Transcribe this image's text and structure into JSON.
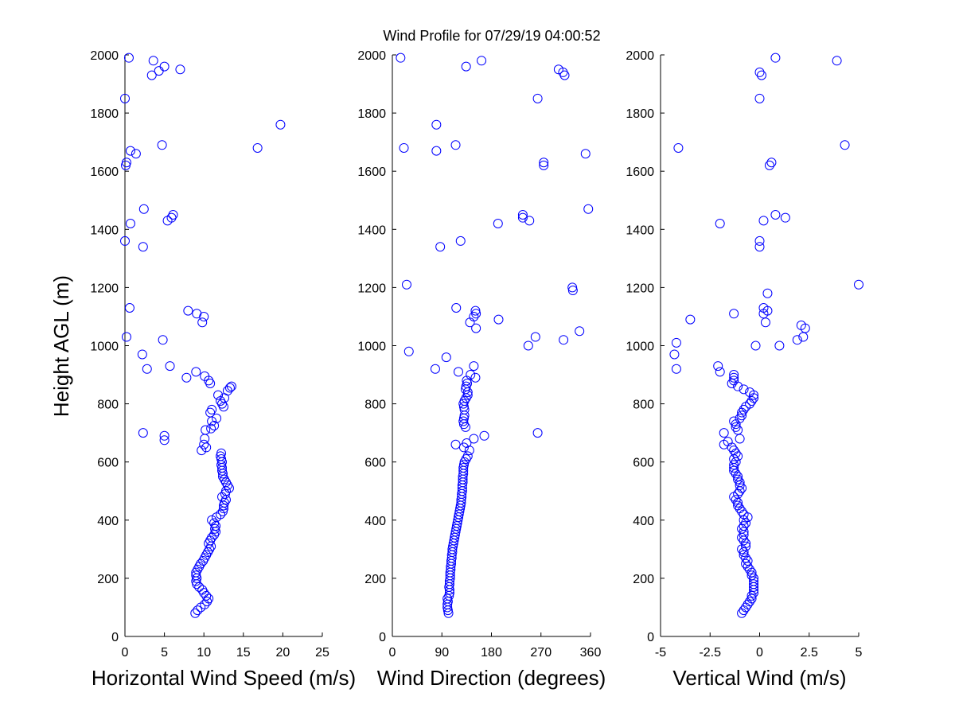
{
  "title": "Wind Profile for  07/29/19 04:00:52",
  "colors": {
    "marker": "#0000ff",
    "axis": "#000000",
    "background": "#ffffff"
  },
  "chart_data": [
    {
      "type": "scatter",
      "xlabel": "Horizontal Wind Speed (m/s)",
      "ylabel": "Height AGL (m)",
      "xlim": [
        0,
        25
      ],
      "ylim": [
        0,
        2000
      ],
      "xticks": [
        "0",
        "5",
        "10",
        "15",
        "20",
        "25"
      ],
      "yticks": [
        "0",
        "200",
        "400",
        "600",
        "800",
        "1000",
        "1200",
        "1400",
        "1600",
        "1800",
        "2000"
      ],
      "grid": false,
      "points": [
        [
          8.9,
          80
        ],
        [
          9.2,
          90
        ],
        [
          9.6,
          100
        ],
        [
          10.1,
          110
        ],
        [
          10.4,
          120
        ],
        [
          10.6,
          130
        ],
        [
          10.3,
          140
        ],
        [
          10.0,
          150
        ],
        [
          9.8,
          160
        ],
        [
          9.4,
          170
        ],
        [
          9.1,
          180
        ],
        [
          9.0,
          190
        ],
        [
          9.1,
          200
        ],
        [
          9.0,
          210
        ],
        [
          9.0,
          220
        ],
        [
          9.2,
          230
        ],
        [
          9.4,
          240
        ],
        [
          9.6,
          250
        ],
        [
          9.9,
          260
        ],
        [
          10.1,
          270
        ],
        [
          10.3,
          280
        ],
        [
          10.5,
          290
        ],
        [
          10.7,
          300
        ],
        [
          10.9,
          310
        ],
        [
          10.6,
          320
        ],
        [
          10.8,
          330
        ],
        [
          11.0,
          340
        ],
        [
          11.3,
          350
        ],
        [
          11.5,
          360
        ],
        [
          11.4,
          370
        ],
        [
          11.5,
          380
        ],
        [
          11.3,
          390
        ],
        [
          11.0,
          400
        ],
        [
          11.6,
          410
        ],
        [
          12.1,
          420
        ],
        [
          12.4,
          430
        ],
        [
          12.5,
          440
        ],
        [
          12.5,
          450
        ],
        [
          12.6,
          460
        ],
        [
          12.8,
          470
        ],
        [
          12.3,
          480
        ],
        [
          12.7,
          490
        ],
        [
          12.8,
          500
        ],
        [
          13.2,
          510
        ],
        [
          13.0,
          520
        ],
        [
          12.8,
          530
        ],
        [
          12.6,
          540
        ],
        [
          12.4,
          550
        ],
        [
          12.4,
          560
        ],
        [
          12.3,
          570
        ],
        [
          12.3,
          580
        ],
        [
          12.2,
          590
        ],
        [
          12.3,
          600
        ],
        [
          12.2,
          610
        ],
        [
          12.1,
          620
        ],
        [
          12.2,
          630
        ],
        [
          9.7,
          640
        ],
        [
          10.3,
          650
        ],
        [
          10.0,
          660
        ],
        [
          10.1,
          680
        ],
        [
          5.0,
          675
        ],
        [
          5.0,
          690
        ],
        [
          2.3,
          700
        ],
        [
          10.2,
          710
        ],
        [
          10.9,
          715
        ],
        [
          11.3,
          725
        ],
        [
          11.0,
          740
        ],
        [
          11.6,
          750
        ],
        [
          10.8,
          770
        ],
        [
          11.0,
          780
        ],
        [
          12.5,
          790
        ],
        [
          12.3,
          800
        ],
        [
          12.1,
          810
        ],
        [
          12.6,
          820
        ],
        [
          11.8,
          830
        ],
        [
          13.0,
          845
        ],
        [
          13.3,
          855
        ],
        [
          13.5,
          860
        ],
        [
          10.8,
          870
        ],
        [
          10.6,
          880
        ],
        [
          7.8,
          890
        ],
        [
          10.1,
          895
        ],
        [
          9.0,
          910
        ],
        [
          2.8,
          920
        ],
        [
          5.7,
          930
        ],
        [
          2.2,
          970
        ],
        [
          4.8,
          1020
        ],
        [
          0.2,
          1030
        ],
        [
          9.8,
          1080
        ],
        [
          10.0,
          1100
        ],
        [
          9.1,
          1110
        ],
        [
          8.0,
          1120
        ],
        [
          0.6,
          1130
        ],
        [
          2.3,
          1340
        ],
        [
          0.0,
          1360
        ],
        [
          0.7,
          1420
        ],
        [
          5.4,
          1430
        ],
        [
          5.9,
          1440
        ],
        [
          6.1,
          1450
        ],
        [
          2.4,
          1470
        ],
        [
          0.1,
          1620
        ],
        [
          0.2,
          1630
        ],
        [
          1.4,
          1660
        ],
        [
          0.7,
          1670
        ],
        [
          16.8,
          1680
        ],
        [
          4.7,
          1690
        ],
        [
          19.7,
          1760
        ],
        [
          0.0,
          1850
        ],
        [
          3.4,
          1930
        ],
        [
          4.3,
          1945
        ],
        [
          7.0,
          1950
        ],
        [
          5.0,
          1960
        ],
        [
          3.6,
          1980
        ],
        [
          0.5,
          1990
        ]
      ]
    },
    {
      "type": "scatter",
      "xlabel": "Wind Direction (degrees)",
      "ylabel": "",
      "xlim": [
        0,
        360
      ],
      "ylim": [
        0,
        2000
      ],
      "xticks": [
        "0",
        "90",
        "180",
        "270",
        "360"
      ],
      "yticks": [
        "0",
        "200",
        "400",
        "600",
        "800",
        "1000",
        "1200",
        "1400",
        "1600",
        "1800",
        "2000"
      ],
      "grid": false,
      "points": [
        [
          102,
          80
        ],
        [
          101,
          90
        ],
        [
          100,
          100
        ],
        [
          100,
          110
        ],
        [
          101,
          120
        ],
        [
          100,
          130
        ],
        [
          103,
          140
        ],
        [
          104,
          150
        ],
        [
          104,
          160
        ],
        [
          103,
          170
        ],
        [
          104,
          180
        ],
        [
          104,
          190
        ],
        [
          105,
          200
        ],
        [
          105,
          210
        ],
        [
          105,
          220
        ],
        [
          106,
          230
        ],
        [
          106,
          240
        ],
        [
          107,
          250
        ],
        [
          107,
          260
        ],
        [
          108,
          270
        ],
        [
          108,
          280
        ],
        [
          109,
          290
        ],
        [
          109,
          300
        ],
        [
          110,
          310
        ],
        [
          111,
          320
        ],
        [
          112,
          330
        ],
        [
          113,
          340
        ],
        [
          114,
          350
        ],
        [
          115,
          360
        ],
        [
          116,
          370
        ],
        [
          117,
          380
        ],
        [
          118,
          390
        ],
        [
          119,
          400
        ],
        [
          120,
          410
        ],
        [
          121,
          420
        ],
        [
          122,
          430
        ],
        [
          123,
          440
        ],
        [
          124,
          450
        ],
        [
          125,
          460
        ],
        [
          125,
          470
        ],
        [
          126,
          480
        ],
        [
          126,
          490
        ],
        [
          127,
          500
        ],
        [
          127,
          510
        ],
        [
          127,
          520
        ],
        [
          128,
          530
        ],
        [
          128,
          540
        ],
        [
          128,
          550
        ],
        [
          129,
          560
        ],
        [
          129,
          570
        ],
        [
          129,
          580
        ],
        [
          130,
          590
        ],
        [
          131,
          600
        ],
        [
          134,
          610
        ],
        [
          137,
          620
        ],
        [
          140,
          640
        ],
        [
          130,
          650
        ],
        [
          115,
          660
        ],
        [
          135,
          665
        ],
        [
          148,
          680
        ],
        [
          167,
          690
        ],
        [
          264,
          700
        ],
        [
          133,
          720
        ],
        [
          130,
          730
        ],
        [
          129,
          740
        ],
        [
          130,
          750
        ],
        [
          131,
          760
        ],
        [
          131,
          780
        ],
        [
          130,
          790
        ],
        [
          129,
          800
        ],
        [
          131,
          810
        ],
        [
          134,
          820
        ],
        [
          137,
          830
        ],
        [
          137,
          840
        ],
        [
          133,
          850
        ],
        [
          134,
          860
        ],
        [
          136,
          870
        ],
        [
          135,
          880
        ],
        [
          151,
          890
        ],
        [
          142,
          900
        ],
        [
          120,
          910
        ],
        [
          78,
          920
        ],
        [
          148,
          930
        ],
        [
          98,
          960
        ],
        [
          30,
          980
        ],
        [
          247,
          1000
        ],
        [
          311,
          1020
        ],
        [
          260,
          1030
        ],
        [
          340,
          1050
        ],
        [
          152,
          1060
        ],
        [
          141,
          1080
        ],
        [
          193,
          1090
        ],
        [
          148,
          1100
        ],
        [
          152,
          1110
        ],
        [
          151,
          1120
        ],
        [
          116,
          1130
        ],
        [
          328,
          1190
        ],
        [
          327,
          1200
        ],
        [
          26,
          1210
        ],
        [
          87,
          1340
        ],
        [
          124,
          1360
        ],
        [
          192,
          1420
        ],
        [
          249,
          1430
        ],
        [
          237,
          1440
        ],
        [
          237,
          1450
        ],
        [
          356,
          1470
        ],
        [
          275,
          1620
        ],
        [
          275,
          1630
        ],
        [
          351,
          1660
        ],
        [
          80,
          1670
        ],
        [
          21,
          1680
        ],
        [
          115,
          1690
        ],
        [
          80,
          1760
        ],
        [
          264,
          1850
        ],
        [
          313,
          1930
        ],
        [
          310,
          1940
        ],
        [
          302,
          1950
        ],
        [
          134,
          1960
        ],
        [
          162,
          1980
        ],
        [
          15,
          1990
        ]
      ]
    },
    {
      "type": "scatter",
      "xlabel": "Vertical Wind (m/s)",
      "ylabel": "",
      "xlim": [
        -5,
        5
      ],
      "ylim": [
        0,
        2000
      ],
      "xticks": [
        "-5",
        "-2.5",
        "0",
        "2.5",
        "5"
      ],
      "yticks": [
        "0",
        "200",
        "400",
        "600",
        "800",
        "1000",
        "1200",
        "1400",
        "1600",
        "1800",
        "2000"
      ],
      "grid": false,
      "points": [
        [
          -0.9,
          80
        ],
        [
          -0.8,
          90
        ],
        [
          -0.7,
          100
        ],
        [
          -0.6,
          110
        ],
        [
          -0.5,
          120
        ],
        [
          -0.4,
          130
        ],
        [
          -0.4,
          140
        ],
        [
          -0.3,
          150
        ],
        [
          -0.3,
          160
        ],
        [
          -0.3,
          170
        ],
        [
          -0.3,
          180
        ],
        [
          -0.3,
          190
        ],
        [
          -0.3,
          200
        ],
        [
          -0.4,
          210
        ],
        [
          -0.4,
          220
        ],
        [
          -0.5,
          230
        ],
        [
          -0.6,
          240
        ],
        [
          -0.7,
          250
        ],
        [
          -0.6,
          260
        ],
        [
          -0.7,
          270
        ],
        [
          -0.8,
          280
        ],
        [
          -0.8,
          290
        ],
        [
          -0.9,
          300
        ],
        [
          -0.7,
          310
        ],
        [
          -0.7,
          320
        ],
        [
          -0.8,
          330
        ],
        [
          -0.9,
          340
        ],
        [
          -0.8,
          350
        ],
        [
          -0.8,
          360
        ],
        [
          -0.9,
          370
        ],
        [
          -0.8,
          380
        ],
        [
          -0.7,
          390
        ],
        [
          -0.8,
          400
        ],
        [
          -0.6,
          410
        ],
        [
          -0.8,
          420
        ],
        [
          -0.9,
          430
        ],
        [
          -1.0,
          440
        ],
        [
          -1.1,
          450
        ],
        [
          -1.1,
          460
        ],
        [
          -1.2,
          470
        ],
        [
          -1.3,
          480
        ],
        [
          -1.1,
          490
        ],
        [
          -1.0,
          500
        ],
        [
          -0.9,
          510
        ],
        [
          -1.0,
          520
        ],
        [
          -1.0,
          530
        ],
        [
          -1.1,
          540
        ],
        [
          -1.1,
          550
        ],
        [
          -1.2,
          560
        ],
        [
          -1.3,
          570
        ],
        [
          -1.3,
          580
        ],
        [
          -1.3,
          590
        ],
        [
          -1.2,
          600
        ],
        [
          -1.3,
          610
        ],
        [
          -1.1,
          620
        ],
        [
          -1.2,
          630
        ],
        [
          -1.3,
          640
        ],
        [
          -1.4,
          650
        ],
        [
          -1.8,
          660
        ],
        [
          -1.6,
          670
        ],
        [
          -1.0,
          680
        ],
        [
          -1.8,
          700
        ],
        [
          -1.1,
          710
        ],
        [
          -1.2,
          720
        ],
        [
          -1.2,
          730
        ],
        [
          -1.3,
          740
        ],
        [
          -1.0,
          750
        ],
        [
          -0.9,
          760
        ],
        [
          -0.9,
          770
        ],
        [
          -0.8,
          780
        ],
        [
          -0.7,
          790
        ],
        [
          -0.5,
          800
        ],
        [
          -0.4,
          810
        ],
        [
          -0.3,
          820
        ],
        [
          -0.3,
          830
        ],
        [
          -0.5,
          840
        ],
        [
          -0.8,
          850
        ],
        [
          -1.1,
          860
        ],
        [
          -1.4,
          870
        ],
        [
          -1.3,
          880
        ],
        [
          -1.3,
          890
        ],
        [
          -1.3,
          900
        ],
        [
          -2.0,
          910
        ],
        [
          -4.2,
          920
        ],
        [
          -2.1,
          930
        ],
        [
          -4.3,
          970
        ],
        [
          -0.2,
          1000
        ],
        [
          -4.2,
          1010
        ],
        [
          1.0,
          1000
        ],
        [
          1.9,
          1020
        ],
        [
          2.2,
          1030
        ],
        [
          2.3,
          1060
        ],
        [
          2.1,
          1070
        ],
        [
          0.3,
          1080
        ],
        [
          -3.5,
          1090
        ],
        [
          0.2,
          1110
        ],
        [
          -1.3,
          1110
        ],
        [
          0.4,
          1120
        ],
        [
          0.2,
          1130
        ],
        [
          0.4,
          1180
        ],
        [
          5.0,
          1210
        ],
        [
          0.0,
          1340
        ],
        [
          0.0,
          1360
        ],
        [
          -2.0,
          1420
        ],
        [
          0.2,
          1430
        ],
        [
          1.3,
          1440
        ],
        [
          0.8,
          1450
        ],
        [
          0.5,
          1620
        ],
        [
          0.6,
          1630
        ],
        [
          -4.1,
          1680
        ],
        [
          4.3,
          1690
        ],
        [
          0.0,
          1850
        ],
        [
          0.1,
          1930
        ],
        [
          0.0,
          1940
        ],
        [
          3.9,
          1980
        ],
        [
          0.8,
          1990
        ]
      ]
    }
  ]
}
